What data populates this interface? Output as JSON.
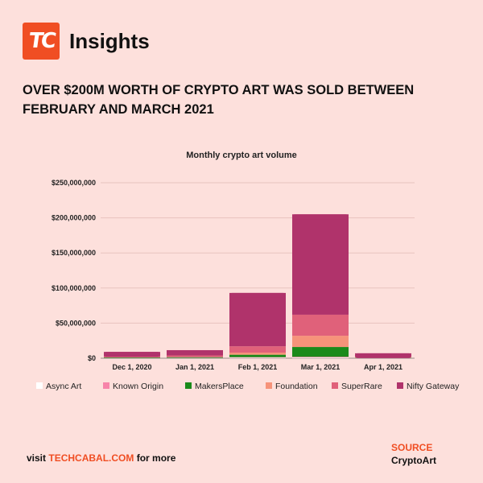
{
  "brand": {
    "logo_text": "TC",
    "name": "Insights"
  },
  "headline": "OVER $200M WORTH OF CRYPTO ART WAS SOLD BETWEEN FEBRUARY AND MARCH 2021",
  "footer": {
    "prefix": "visit ",
    "link": "TECHCABAL.COM",
    "suffix": " for more"
  },
  "source": {
    "label": "SOURCE",
    "value": "CryptoArt"
  },
  "colors": {
    "accent": "#f04e23",
    "background": "#fde0dc"
  },
  "chart_data": {
    "type": "bar",
    "stacked": true,
    "title": "Monthly crypto art volume",
    "xlabel": "",
    "ylabel": "",
    "categories": [
      "Dec 1, 2020",
      "Jan 1, 2021",
      "Feb 1, 2021",
      "Mar 1, 2021",
      "Apr 1, 2021"
    ],
    "yticks": [
      "$0",
      "$50,000,000",
      "$100,000,000",
      "$150,000,000",
      "$200,000,000",
      "$250,000,000"
    ],
    "ylim": [
      0,
      250000000
    ],
    "grid": true,
    "legend_position": "bottom",
    "series": [
      {
        "name": "Async Art",
        "color": "#ffffff",
        "values": [
          200000,
          300000,
          800000,
          1000000,
          200000
        ]
      },
      {
        "name": "Known Origin",
        "color": "#f784a9",
        "values": [
          100000,
          200000,
          700000,
          1000000,
          200000
        ]
      },
      {
        "name": "MakersPlace",
        "color": "#1a8a1a",
        "values": [
          800000,
          1000000,
          3500000,
          14000000,
          500000
        ]
      },
      {
        "name": "Foundation",
        "color": "#f6937a",
        "values": [
          0,
          0,
          3000000,
          16000000,
          1500000
        ]
      },
      {
        "name": "SuperRare",
        "color": "#e0617a",
        "values": [
          1500000,
          2500000,
          9000000,
          30000000,
          3000000
        ]
      },
      {
        "name": "Nifty Gateway",
        "color": "#b0336b",
        "values": [
          6400000,
          7500000,
          76000000,
          143000000,
          1600000
        ]
      }
    ]
  }
}
